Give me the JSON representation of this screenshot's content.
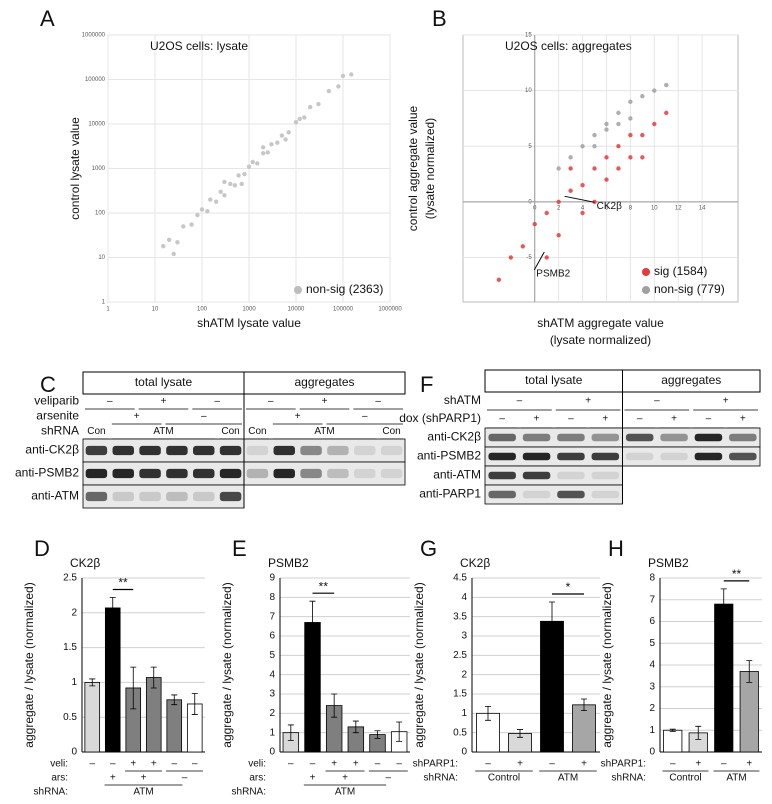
{
  "chart_data": [
    {
      "panel": "A",
      "type": "scatter",
      "title": "U2OS cells: lysate",
      "xlabel": "shATM lysate value",
      "ylabel": "control lysate value",
      "log": true,
      "xlim": [
        1,
        1000000
      ],
      "ylim": [
        1,
        1000000
      ],
      "xticks": [
        1,
        10,
        100,
        1000,
        10000,
        100000,
        1000000
      ],
      "yticks": [
        1,
        10,
        100,
        1000,
        10000,
        100000,
        1000000
      ],
      "grid": true,
      "legend": "lower right",
      "series": [
        {
          "name": "non-sig (2363)",
          "color": "#bdbdbd",
          "x": [
            15,
            20,
            30,
            40,
            60,
            80,
            100,
            130,
            150,
            200,
            250,
            300,
            400,
            500,
            600,
            800,
            1000,
            1200,
            1500,
            2000,
            2500,
            3000,
            4000,
            5000,
            7000,
            10000,
            12000,
            15000,
            20000,
            30000,
            50000,
            80000,
            100000,
            150000,
            300,
            700,
            2000,
            6000,
            25
          ],
          "y": [
            18,
            25,
            22,
            50,
            55,
            90,
            120,
            110,
            200,
            180,
            300,
            250,
            450,
            420,
            700,
            750,
            1100,
            1400,
            1300,
            2200,
            2300,
            3500,
            3800,
            5500,
            6500,
            11000,
            13000,
            14000,
            24000,
            28000,
            55000,
            70000,
            120000,
            130000,
            500,
            450,
            3000,
            4500,
            12
          ]
        }
      ]
    },
    {
      "panel": "B",
      "type": "scatter",
      "title": "U2OS cells: aggregates",
      "xlabel": [
        "shATM aggregate value",
        "(lysate normalized)"
      ],
      "ylabel": [
        "control aggregate value",
        "(lysate normalized)"
      ],
      "log": false,
      "xlim": [
        -6,
        17
      ],
      "ylim": [
        -9,
        15
      ],
      "xticks": [
        0,
        2,
        4,
        6,
        8,
        10,
        12,
        14
      ],
      "yticks": [
        -5,
        0,
        5,
        10,
        15
      ],
      "grid": true,
      "axes_cross_at_zero": true,
      "legend": "lower right",
      "series": [
        {
          "name": "sig (1584)",
          "color": "#e23c3c",
          "x": [
            0,
            1,
            2,
            3,
            4,
            5,
            6,
            7,
            8,
            9,
            10,
            -2,
            -3,
            2,
            4,
            6,
            11,
            1,
            5,
            9,
            3,
            7,
            -1,
            8
          ],
          "y": [
            -2,
            -1,
            0,
            1,
            1.5,
            3,
            4,
            5,
            6,
            6,
            7,
            -5,
            -7,
            -3,
            -1,
            2,
            8,
            -5,
            0,
            4,
            3,
            3,
            -4,
            4
          ]
        },
        {
          "name": "non-sig (779)",
          "color": "#a0a0a0",
          "x": [
            4,
            5,
            6,
            7,
            8,
            9,
            3,
            6,
            10,
            2,
            7,
            8,
            5,
            11
          ],
          "y": [
            5,
            6,
            7,
            8,
            9,
            9.5,
            4,
            6.5,
            10,
            3,
            7,
            7.5,
            5,
            10.5
          ]
        }
      ],
      "annotations": [
        {
          "text": "CK2β",
          "x": 2.5,
          "y": 0.5
        },
        {
          "text": "PSMB2",
          "x": 0.8,
          "y": -4.5
        }
      ]
    },
    {
      "panel": "D",
      "type": "bar",
      "title": "CK2β",
      "ylabel": "aggregate / lysate (normalized)",
      "ylim": [
        0,
        2.5
      ],
      "yticks": [
        0,
        0.5,
        1,
        1.5,
        2,
        2.5
      ],
      "grid": true,
      "values": [
        1.0,
        2.07,
        0.92,
        1.07,
        0.75,
        0.69
      ],
      "errors": [
        0.05,
        0.15,
        0.3,
        0.15,
        0.07,
        0.15
      ],
      "colors": [
        "#d9d9d9",
        "#000000",
        "#7f7f7f",
        "#7f7f7f",
        "#7f7f7f",
        "#ffffff"
      ],
      "significance": {
        "label": "**",
        "from": 1,
        "to": 2
      },
      "conditions": [
        {
          "name": "veli:",
          "items": [
            {
              "label": "–",
              "from": 0,
              "to": 0
            },
            {
              "label": "–",
              "from": 1,
              "to": 1
            },
            {
              "label": "+",
              "from": 2,
              "to": 2
            },
            {
              "label": "+",
              "from": 3,
              "to": 3
            },
            {
              "label": "–",
              "from": 4,
              "to": 4
            },
            {
              "label": "–",
              "from": 5,
              "to": 5
            }
          ]
        },
        {
          "name": "ars:",
          "items": [
            {
              "label": "+",
              "from": 1,
              "to": 1
            },
            {
              "label": "+",
              "from": 2,
              "to": 3
            },
            {
              "label": "–",
              "from": 4,
              "to": 5
            }
          ]
        },
        {
          "name": "shRNA:",
          "items": [
            {
              "label": "ATM",
              "from": 1,
              "to": 4
            }
          ]
        }
      ]
    },
    {
      "panel": "E",
      "type": "bar",
      "title": "PSMB2",
      "ylabel": "aggregate / lysate (normalized)",
      "ylim": [
        0,
        9
      ],
      "yticks": [
        0,
        1,
        2,
        3,
        4,
        5,
        6,
        7,
        8,
        9
      ],
      "grid": true,
      "values": [
        1.0,
        6.7,
        2.4,
        1.3,
        0.9,
        1.05
      ],
      "errors": [
        0.4,
        1.1,
        0.6,
        0.3,
        0.2,
        0.5
      ],
      "colors": [
        "#d9d9d9",
        "#000000",
        "#7f7f7f",
        "#7f7f7f",
        "#7f7f7f",
        "#ffffff"
      ],
      "significance": {
        "label": "**",
        "from": 1,
        "to": 2
      },
      "conditions": [
        {
          "name": "veli:",
          "items": [
            {
              "label": "–",
              "from": 0,
              "to": 0
            },
            {
              "label": "–",
              "from": 1,
              "to": 1
            },
            {
              "label": "+",
              "from": 2,
              "to": 2
            },
            {
              "label": "+",
              "from": 3,
              "to": 3
            },
            {
              "label": "–",
              "from": 4,
              "to": 4
            },
            {
              "label": "–",
              "from": 5,
              "to": 5
            }
          ]
        },
        {
          "name": "ars:",
          "items": [
            {
              "label": "+",
              "from": 1,
              "to": 1
            },
            {
              "label": "+",
              "from": 2,
              "to": 3
            },
            {
              "label": "–",
              "from": 4,
              "to": 5
            }
          ]
        },
        {
          "name": "shRNA:",
          "items": [
            {
              "label": "ATM",
              "from": 1,
              "to": 4
            }
          ]
        }
      ]
    },
    {
      "panel": "G",
      "type": "bar",
      "title": "CK2β",
      "ylabel": "aggregate / lysate (normalized)",
      "ylim": [
        0,
        4.5
      ],
      "yticks": [
        0,
        0.5,
        1,
        1.5,
        2,
        2.5,
        3,
        3.5,
        4,
        4.5
      ],
      "grid": true,
      "values": [
        1.0,
        0.48,
        3.38,
        1.22
      ],
      "errors": [
        0.18,
        0.1,
        0.5,
        0.15
      ],
      "colors": [
        "#ffffff",
        "#d9d9d9",
        "#000000",
        "#a6a6a6"
      ],
      "significance": {
        "label": "*",
        "from": 2,
        "to": 3
      },
      "conditions": [
        {
          "name": "shPARP1:",
          "items": [
            {
              "label": "–",
              "from": 0,
              "to": 0
            },
            {
              "label": "+",
              "from": 1,
              "to": 1
            },
            {
              "label": "–",
              "from": 2,
              "to": 2
            },
            {
              "label": "+",
              "from": 3,
              "to": 3
            }
          ]
        },
        {
          "name": "shRNA:",
          "items": [
            {
              "label": "Control",
              "from": 0,
              "to": 1
            },
            {
              "label": "ATM",
              "from": 2,
              "to": 3
            }
          ]
        }
      ]
    },
    {
      "panel": "H",
      "type": "bar",
      "title": "PSMB2",
      "ylabel": "aggregate / lysate (normalized)",
      "ylim": [
        0,
        8
      ],
      "yticks": [
        0,
        1,
        2,
        3,
        4,
        5,
        6,
        7,
        8
      ],
      "grid": true,
      "values": [
        1.0,
        0.88,
        6.8,
        3.7
      ],
      "errors": [
        0.05,
        0.3,
        0.7,
        0.5
      ],
      "colors": [
        "#ffffff",
        "#d9d9d9",
        "#000000",
        "#a6a6a6"
      ],
      "significance": {
        "label": "**",
        "from": 2,
        "to": 3
      },
      "conditions": [
        {
          "name": "shPARP1:",
          "items": [
            {
              "label": "–",
              "from": 0,
              "to": 0
            },
            {
              "label": "+",
              "from": 1,
              "to": 1
            },
            {
              "label": "–",
              "from": 2,
              "to": 2
            },
            {
              "label": "+",
              "from": 3,
              "to": 3
            }
          ]
        },
        {
          "name": "shRNA:",
          "items": [
            {
              "label": "Control",
              "from": 0,
              "to": 1
            },
            {
              "label": "ATM",
              "from": 2,
              "to": 3
            }
          ]
        }
      ]
    }
  ],
  "blots": [
    {
      "panel": "C",
      "lanes": 12,
      "headers": [
        {
          "text": "total lysate",
          "from": 0,
          "to": 5
        },
        {
          "text": "aggregates",
          "from": 6,
          "to": 11
        }
      ],
      "rows": [
        {
          "name": "veliparib",
          "cells": [
            {
              "label": "–",
              "from": 0,
              "to": 1
            },
            {
              "label": "+",
              "from": 2,
              "to": 3
            },
            {
              "label": "–",
              "from": 4,
              "to": 5
            },
            {
              "label": "–",
              "from": 6,
              "to": 7
            },
            {
              "label": "+",
              "from": 8,
              "to": 9
            },
            {
              "label": "–",
              "from": 10,
              "to": 11
            }
          ]
        },
        {
          "name": "arsenite",
          "cells": [
            {
              "label": "+",
              "from": 1,
              "to": 2
            },
            {
              "label": "–",
              "from": 3,
              "to": 5
            },
            {
              "label": "+",
              "from": 7,
              "to": 8
            },
            {
              "label": "–",
              "from": 9,
              "to": 11
            }
          ]
        },
        {
          "name": "shRNA",
          "cells": [
            {
              "label": "Con",
              "from": 0,
              "to": 0
            },
            {
              "label": "ATM",
              "from": 1,
              "to": 4
            },
            {
              "label": "Con",
              "from": 5,
              "to": 5
            },
            {
              "label": "Con",
              "from": 6,
              "to": 6
            },
            {
              "label": "ATM",
              "from": 7,
              "to": 10
            },
            {
              "label": "Con",
              "from": 11,
              "to": 11
            }
          ]
        }
      ],
      "probes": [
        {
          "name": "anti-CK2β",
          "from": 0,
          "to": 11
        },
        {
          "name": "anti-PSMB2",
          "from": 0,
          "to": 11
        },
        {
          "name": "anti-ATM",
          "from": 0,
          "to": 5
        }
      ]
    },
    {
      "panel": "F",
      "lanes": 8,
      "headers": [
        {
          "text": "total lysate",
          "from": 0,
          "to": 3
        },
        {
          "text": "aggregates",
          "from": 4,
          "to": 7
        }
      ],
      "rows": [
        {
          "name": "shATM",
          "cells": [
            {
              "label": "–",
              "from": 0,
              "to": 1
            },
            {
              "label": "+",
              "from": 2,
              "to": 3
            },
            {
              "label": "–",
              "from": 4,
              "to": 5
            },
            {
              "label": "+",
              "from": 6,
              "to": 7
            }
          ]
        },
        {
          "name": "dox (shPARP1)",
          "cells": [
            {
              "label": "–",
              "from": 0,
              "to": 0
            },
            {
              "label": "+",
              "from": 1,
              "to": 1
            },
            {
              "label": "–",
              "from": 2,
              "to": 2
            },
            {
              "label": "+",
              "from": 3,
              "to": 3
            },
            {
              "label": "–",
              "from": 4,
              "to": 4
            },
            {
              "label": "+",
              "from": 5,
              "to": 5
            },
            {
              "label": "–",
              "from": 6,
              "to": 6
            },
            {
              "label": "+",
              "from": 7,
              "to": 7
            }
          ]
        }
      ],
      "probes": [
        {
          "name": "anti-CK2β",
          "from": 0,
          "to": 7
        },
        {
          "name": "anti-PSMB2",
          "from": 0,
          "to": 7
        },
        {
          "name": "anti-ATM",
          "from": 0,
          "to": 3
        },
        {
          "name": "anti-PARP1",
          "from": 0,
          "to": 3
        }
      ]
    }
  ]
}
